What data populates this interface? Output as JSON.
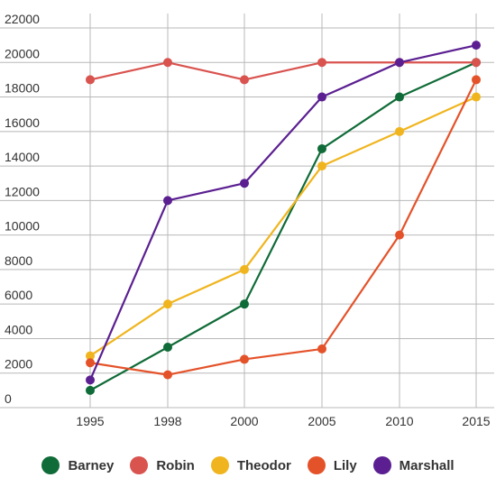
{
  "chart_data": {
    "type": "line",
    "title": "",
    "xlabel": "",
    "ylabel": "",
    "x": [
      "1995",
      "1998",
      "2000",
      "2005",
      "2010",
      "2015"
    ],
    "ylim": [
      0,
      22000
    ],
    "yticks": [
      0,
      2000,
      4000,
      6000,
      8000,
      10000,
      12000,
      14000,
      16000,
      18000,
      20000,
      22000
    ],
    "yticklabels": [
      "0",
      "2000",
      "4000",
      "6000",
      "8000",
      "10000",
      "12000",
      "14000",
      "16000",
      "18000",
      "20000",
      "22000"
    ],
    "grid": true,
    "legend_position": "bottom",
    "series": [
      {
        "name": "Barney",
        "color": "#0f6b37",
        "values": [
          1000,
          3500,
          6000,
          15000,
          18000,
          20000
        ]
      },
      {
        "name": "Robin",
        "color": "#d9534f",
        "values": [
          19000,
          20000,
          19000,
          20000,
          20000,
          20000
        ]
      },
      {
        "name": "Theodor",
        "color": "#f0b51e",
        "values": [
          3000,
          6000,
          8000,
          14000,
          16000,
          18000
        ]
      },
      {
        "name": "Lily",
        "color": "#e4522a",
        "values": [
          2600,
          1900,
          2800,
          3400,
          10000,
          19000
        ]
      },
      {
        "name": "Marshall",
        "color": "#5b1f91",
        "values": [
          1600,
          12000,
          13000,
          18000,
          20000,
          21000
        ]
      }
    ]
  }
}
